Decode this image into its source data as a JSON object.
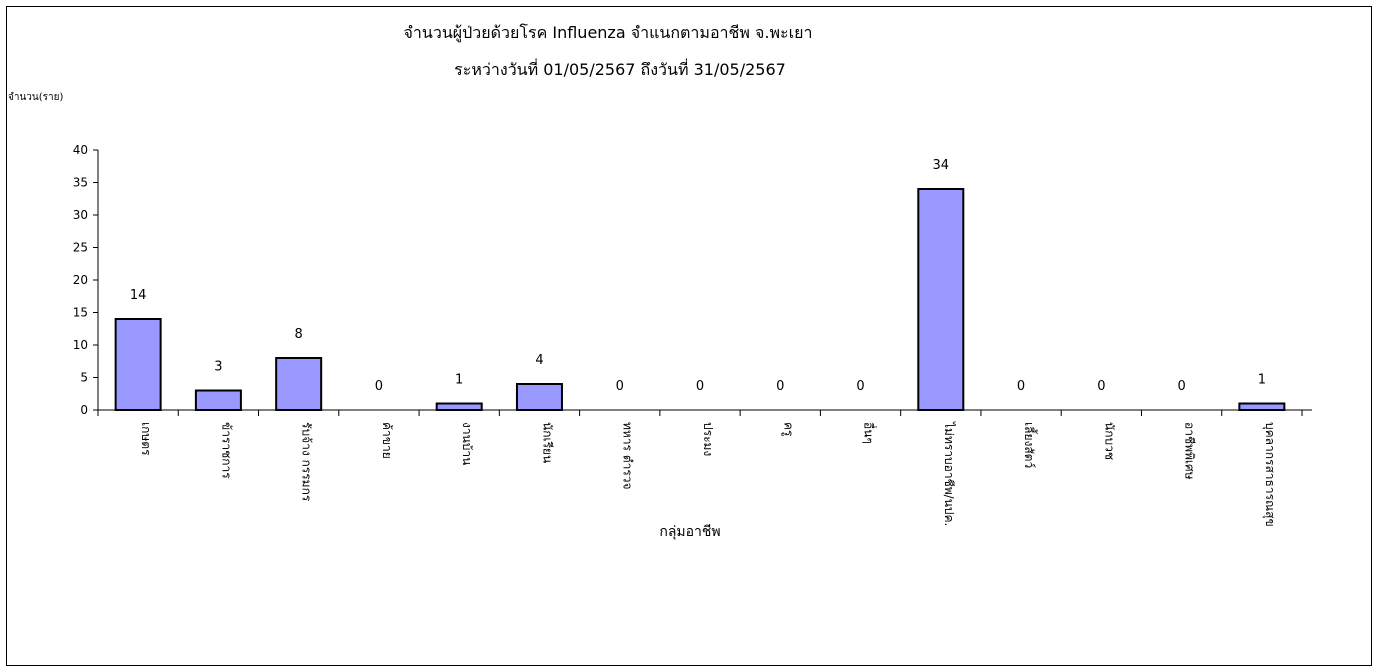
{
  "colors": {
    "bar_fill": "#9999ff",
    "bar_stroke": "#000000",
    "axis": "#000000"
  },
  "chart_data": {
    "type": "bar",
    "title": "จำนวนผู้ป่วยด้วยโรค Influenza  จำแนกตามอาชีพ    จ.พะเยา",
    "subtitle": "ระหว่างวันที่   01/05/2567  ถึงวันที่ 31/05/2567",
    "ylabel": "จำนวน(ราย)",
    "xlabel": "กลุ่มอาชีพ",
    "ylim": [
      0,
      40
    ],
    "yticks": [
      "0",
      "5",
      "10",
      "15",
      "20",
      "25",
      "30",
      "35",
      "40"
    ],
    "grid": false,
    "legend": "none",
    "categories": [
      "เกษตร",
      "ข้าราชการ",
      "รับจ้าง กรรมกร",
      "ค้าขาย",
      "งานบ้าน",
      "นักเรียน",
      "ทหาร ตำรวจ",
      "ประมง",
      "ครู",
      "อื่นๆ",
      "ไม่ทราบอาชีพ/นปค.",
      "เลี้ยงสัตว์",
      "นักบวช",
      "อาชีพพิเศษ",
      "บุคลากรสาธารณสุข"
    ],
    "values": [
      14,
      3,
      8,
      0,
      1,
      4,
      0,
      0,
      0,
      0,
      34,
      0,
      0,
      0,
      1
    ]
  }
}
